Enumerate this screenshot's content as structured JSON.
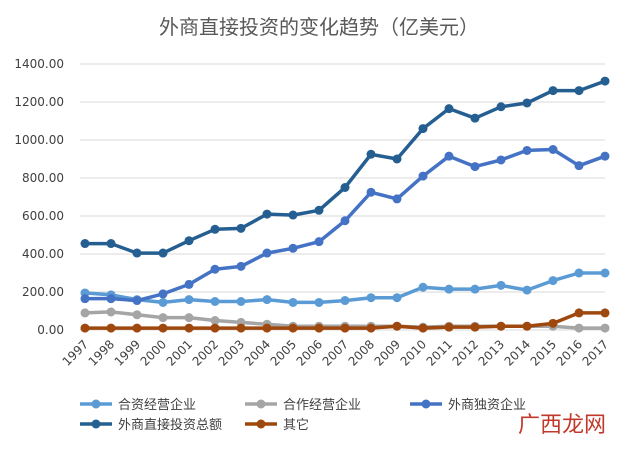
{
  "chart_data": {
    "type": "line",
    "title": "外商直接投资的变化趋势（亿美元）",
    "ylim": [
      0,
      1400
    ],
    "yticks": [
      "0.00",
      "200.00",
      "400.00",
      "600.00",
      "800.00",
      "1000.00",
      "1200.00",
      "1400.00"
    ],
    "grid": true,
    "legend_position": "bottom",
    "categories": [
      "1997",
      "1998",
      "1999",
      "2000",
      "2001",
      "2002",
      "2003",
      "2004",
      "2005",
      "2006",
      "2007",
      "2008",
      "2009",
      "2010",
      "2011",
      "2012",
      "2013",
      "2014",
      "2015",
      "2016",
      "2017"
    ],
    "series": [
      {
        "name": "合资经营企业",
        "color": "#5b9bd5",
        "values": [
          195,
          185,
          160,
          145,
          160,
          150,
          150,
          160,
          145,
          145,
          155,
          170,
          170,
          225,
          215,
          215,
          235,
          210,
          260,
          300,
          300
        ]
      },
      {
        "name": "合作经营企业",
        "color": "#a5a5a5",
        "values": [
          90,
          95,
          80,
          65,
          65,
          50,
          40,
          30,
          20,
          20,
          20,
          20,
          20,
          15,
          20,
          20,
          20,
          20,
          20,
          10,
          10
        ]
      },
      {
        "name": "外商独资企业",
        "color": "#4472c4",
        "values": [
          165,
          165,
          155,
          190,
          240,
          320,
          335,
          405,
          430,
          465,
          575,
          725,
          690,
          810,
          915,
          860,
          895,
          945,
          950,
          865,
          915
        ]
      },
      {
        "name": "外商直接投资总额",
        "color": "#255e91",
        "values": [
          455,
          455,
          405,
          405,
          470,
          530,
          535,
          610,
          605,
          630,
          750,
          925,
          900,
          1060,
          1165,
          1115,
          1175,
          1195,
          1260,
          1260,
          1310
        ]
      },
      {
        "name": "其它",
        "color": "#9e480e",
        "values": [
          10,
          10,
          10,
          10,
          10,
          10,
          10,
          10,
          10,
          10,
          10,
          10,
          20,
          10,
          15,
          15,
          20,
          20,
          35,
          90,
          90
        ]
      }
    ]
  },
  "watermark": "广西龙网"
}
